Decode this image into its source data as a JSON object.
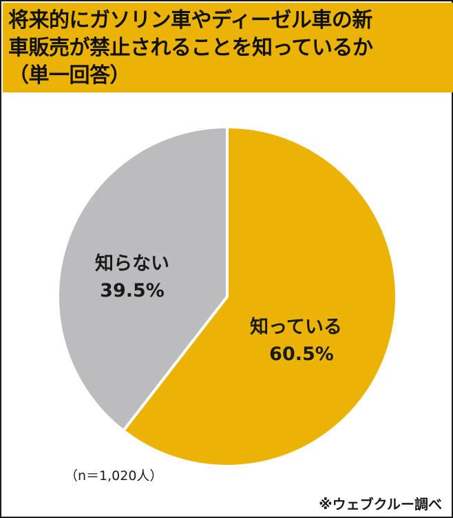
{
  "title": {
    "line1": "将来的にガソリン車やディーゼル車の新",
    "line2": "車販売が禁止されることを知っているか",
    "line3": "（単一回答）"
  },
  "chart_data": {
    "type": "pie",
    "slices": [
      {
        "label": "知っている",
        "value": 60.5,
        "value_label": "60.5%",
        "color": "#ebb404"
      },
      {
        "label": "知らない",
        "value": 39.5,
        "value_label": "39.5%",
        "color": "#bcbbbd"
      }
    ],
    "start": "12 o'clock, clockwise"
  },
  "note": "（n＝1,020人）",
  "source": "※ウェブクルー調べ",
  "colors": {
    "title_bg": "#ebb404",
    "border": "#1a1a1a"
  }
}
